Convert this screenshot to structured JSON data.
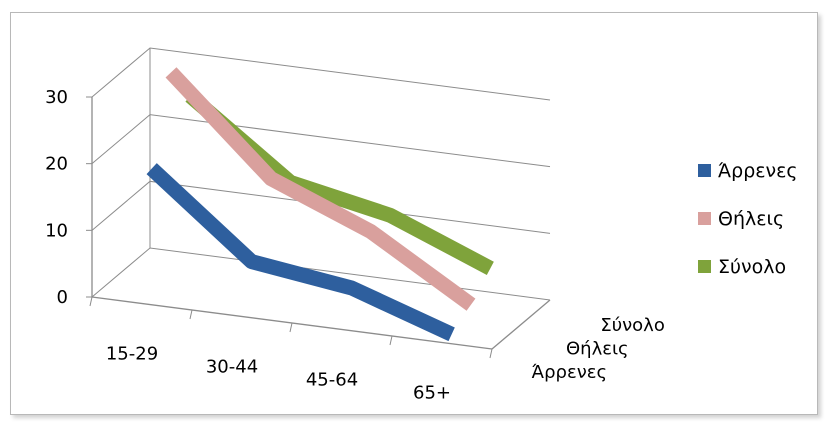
{
  "chart_data": {
    "type": "line",
    "subtype": "3d-line",
    "categories": [
      "15-29",
      "30-44",
      "45-64",
      "65+"
    ],
    "depth_categories": [
      "Άρρενες",
      "Θήλεις",
      "Σύνολο"
    ],
    "series": [
      {
        "name": "Άρρενες",
        "color": "#2E5F9E",
        "values": [
          19,
          7,
          5,
          0
        ]
      },
      {
        "name": "Θήλεις",
        "color": "#D9A09D",
        "values": [
          31,
          17,
          11,
          2
        ]
      },
      {
        "name": "Σύνολο",
        "color": "#7FA33B",
        "values": [
          25,
          14,
          11,
          5
        ]
      }
    ],
    "y_ticks": [
      0,
      10,
      20,
      30
    ],
    "ylim": [
      0,
      30
    ],
    "grid": true,
    "legend_position": "right"
  }
}
